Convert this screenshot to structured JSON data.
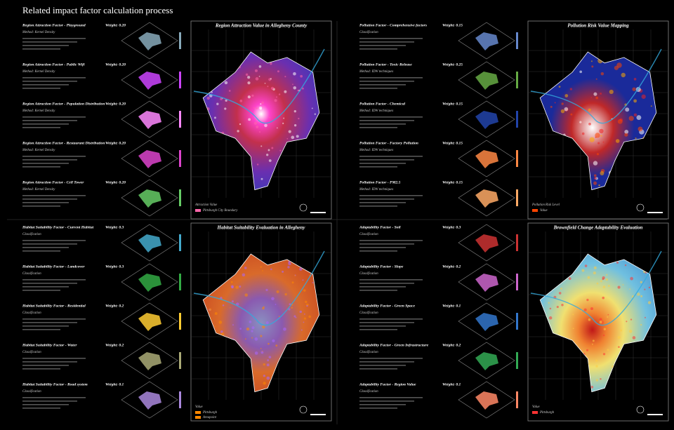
{
  "title": "Related impact factor calculation process",
  "panels": [
    {
      "map_title": "Region Attraction Value in Allegheny County",
      "legend_title": "Attraction Value",
      "legend_items": [
        "Pittsburgh City Boundary"
      ],
      "factors": [
        {
          "name": "Region Attraction Factor - Playground",
          "weight": "Weight: 0.20",
          "method": "Method: Kernel Density"
        },
        {
          "name": "Region Attraction Factor - Public Wifi",
          "weight": "Weight: 0.20",
          "method": "Method: Kernel Density"
        },
        {
          "name": "Region Attraction Factor - Population Distribution",
          "weight": "Weight: 0.20",
          "method": "Method: Kernel Density"
        },
        {
          "name": "Region Attraction Factor - Restaurant Distribution",
          "weight": "Weight: 0.20",
          "method": "Method: Kernel Density"
        },
        {
          "name": "Region Attraction Factor - Cell Tower",
          "weight": "Weight: 0.20",
          "method": "Method: Kernel Density"
        }
      ]
    },
    {
      "map_title": "Pollution Risk Value Mapping",
      "legend_title": "Pollution Risk Level",
      "legend_items": [
        "Value"
      ],
      "factors": [
        {
          "name": "Pollution Factor - Comprehensive factors",
          "weight": "Weight: 0.15",
          "method": "Classification"
        },
        {
          "name": "Pollution Factor - Toxic Release",
          "weight": "Weight: 0.25",
          "method": "Method: IDW techniques"
        },
        {
          "name": "Pollution Factor - Chemical",
          "weight": "Weight: 0.15",
          "method": "Method: IDW techniques"
        },
        {
          "name": "Pollution Factor - Factory Pollution",
          "weight": "Weight: 0.15",
          "method": "Method: IDW techniques"
        },
        {
          "name": "Pollution Factor - PM2.5",
          "weight": "Weight: 0.15",
          "method": "Method: IDW techniques"
        }
      ]
    },
    {
      "map_title": "Habitat Suitability Evaluation in Allegheny",
      "legend_title": "Value",
      "legend_items": [
        "Pittsburgh",
        "Areapoint"
      ],
      "factors": [
        {
          "name": "Habitat Suitability Factor - Current Habitat",
          "weight": "Weight: 0.3",
          "method": "Classification"
        },
        {
          "name": "Habitat Suitability Factor - Landcover",
          "weight": "Weight: 0.3",
          "method": "Classification"
        },
        {
          "name": "Habitat Suitability Factor - Residential",
          "weight": "Weight: 0.2",
          "method": "Classification"
        },
        {
          "name": "Habitat Suitability Factor - Water",
          "weight": "Weight: 0.2",
          "method": "Classification"
        },
        {
          "name": "Habitat Suitability Factor - Road system",
          "weight": "Weight: 0.1",
          "method": "Classification"
        }
      ]
    },
    {
      "map_title": "Brownfield Change Adaptability Evaluation",
      "legend_title": "Value",
      "legend_items": [
        "Pittsburgh"
      ],
      "factors": [
        {
          "name": "Adaptability Factor - Soil",
          "weight": "Weight: 0.3",
          "method": "Classification"
        },
        {
          "name": "Adaptability Factor - Slope",
          "weight": "Weight: 0.2",
          "method": "Classification"
        },
        {
          "name": "Adaptability Factor - Green Space",
          "weight": "Weight: 0.1",
          "method": "Classification"
        },
        {
          "name": "Adaptability Factor - Green Infrastructure",
          "weight": "Weight: 0.2",
          "method": "Classification"
        },
        {
          "name": "Adaptability Factor - Region Value",
          "weight": "Weight: 0.1",
          "method": "Classification"
        }
      ]
    }
  ]
}
